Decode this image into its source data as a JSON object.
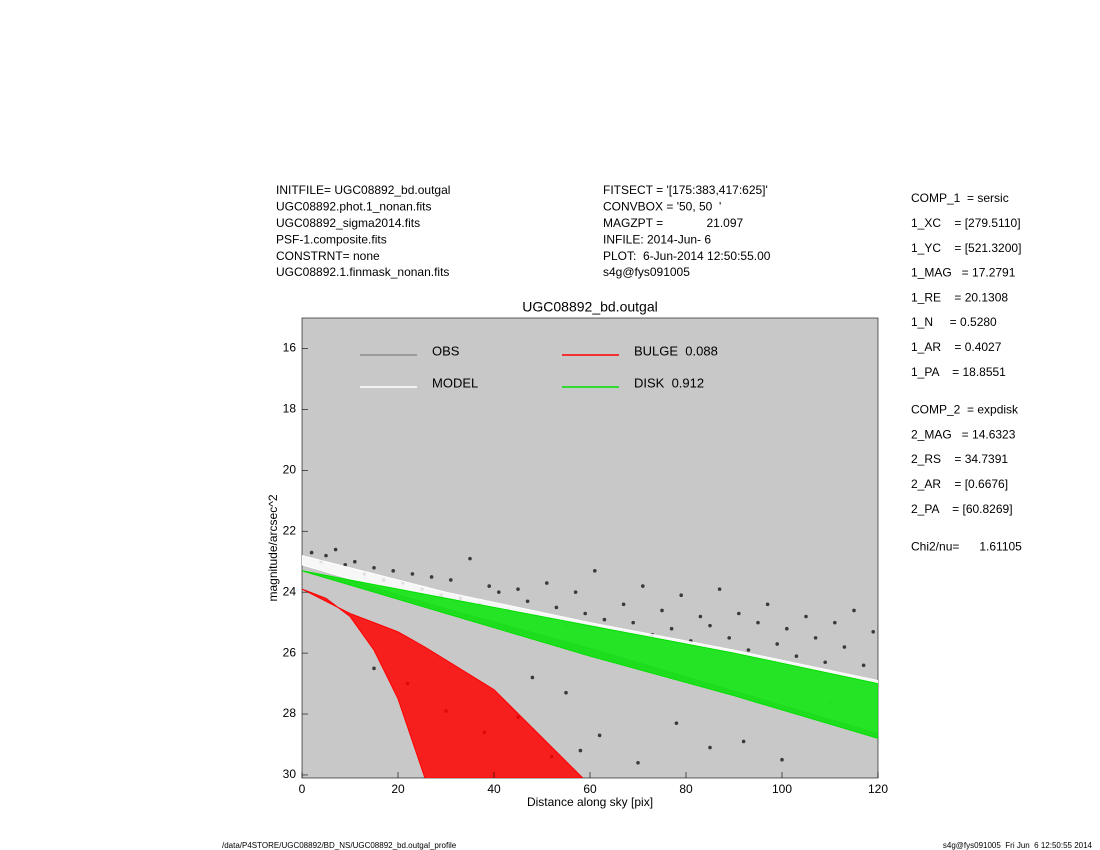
{
  "header": {
    "left": [
      "INITFILE= UGC08892_bd.outgal",
      "UGC08892.phot.1_nonan.fits",
      "UGC08892_sigma2014.fits",
      "PSF-1.composite.fits",
      "CONSTRNT= none",
      "UGC08892.1.finmask_nonan.fits"
    ],
    "middle": [
      "FITSECT = '[175:383,417:625]'",
      "CONVBOX = '50, 50  '",
      "MAGZPT =             21.097",
      "INFILE: 2014-Jun- 6",
      "PLOT:  6-Jun-2014 12:50:55.00",
      "s4g@fys091005"
    ]
  },
  "params": [
    [
      "COMP_1  = sersic",
      "1_XC    = [279.5110]",
      "1_YC    = [521.3200]",
      "1_MAG   = 17.2791",
      "1_RE    = 20.1308",
      "1_N     = 0.5280",
      "1_AR    = 0.4027",
      "1_PA    = 18.8551"
    ],
    [
      "COMP_2  = expdisk",
      "2_MAG   = 14.6323",
      "2_RS    = 34.7391",
      "2_AR    = [0.6676]",
      "2_PA    = [60.8269]"
    ],
    [
      "Chi2/nu=      1.61105"
    ]
  ],
  "footer": {
    "left": "/data/P4STORE/UGC08892/BD_NS/UGC08892_bd.outgal_profile",
    "right": "s4g@fys091005  Fri Jun  6 12:50:55 2014"
  },
  "chart_data": {
    "type": "scatter",
    "title": "UGC08892_bd.outgal",
    "x_label": "Distance along sky [pix]",
    "y_label": "magnitude/arcsec^2",
    "xlim": [
      0,
      120
    ],
    "ylim": [
      15,
      30.1
    ],
    "y_reversed": true,
    "xticks": [
      0,
      20,
      40,
      60,
      80,
      100,
      120
    ],
    "yticks": [
      16,
      18,
      20,
      22,
      24,
      26,
      28,
      30
    ],
    "background": "#c8c8c8",
    "series": [
      {
        "name": "OBS",
        "color": "#8c8c8c",
        "marker_color": "#3a3a3a",
        "x": [
          2,
          4,
          5,
          7,
          9,
          11,
          13,
          15,
          17,
          19,
          21,
          23,
          25,
          27,
          29,
          31,
          33,
          35,
          37,
          39,
          41,
          43,
          45,
          47,
          49,
          51,
          53,
          55,
          57,
          59,
          61,
          63,
          65,
          67,
          69,
          71,
          73,
          75,
          77,
          79,
          81,
          83,
          85,
          87,
          89,
          91,
          93,
          95,
          97,
          99,
          101,
          103,
          105,
          107,
          109,
          111,
          113,
          115,
          117,
          119,
          30,
          38,
          45,
          52,
          58,
          62,
          70,
          78,
          85,
          92,
          100,
          110,
          48,
          55,
          15,
          22
        ],
        "values": [
          22.7,
          23.0,
          22.8,
          22.6,
          23.1,
          23.0,
          23.4,
          23.2,
          23.6,
          23.3,
          23.7,
          23.4,
          23.9,
          23.5,
          24.1,
          23.6,
          24.2,
          22.9,
          24.4,
          23.8,
          24.0,
          24.6,
          23.9,
          24.3,
          24.8,
          23.7,
          24.5,
          25.1,
          24.0,
          24.7,
          23.3,
          24.9,
          25.3,
          24.4,
          25.0,
          23.8,
          25.4,
          24.6,
          25.2,
          24.1,
          25.6,
          24.8,
          25.1,
          23.9,
          25.5,
          24.7,
          25.9,
          25.0,
          24.4,
          25.7,
          25.2,
          26.1,
          24.8,
          25.5,
          26.3,
          25.0,
          25.8,
          24.6,
          26.4,
          25.3,
          27.9,
          28.6,
          28.1,
          29.4,
          29.2,
          28.7,
          29.6,
          28.3,
          29.1,
          28.9,
          29.5,
          27.6,
          26.8,
          27.3,
          26.5,
          27.0
        ]
      },
      {
        "name": "MODEL",
        "color": "#ffffff",
        "x": [
          0,
          30,
          60,
          90,
          120
        ],
        "values": [
          22.8,
          24.0,
          25.0,
          25.9,
          26.9
        ],
        "lower": [
          23.1,
          24.5,
          25.8,
          27.2,
          28.6
        ]
      },
      {
        "name": "BULGE  0.088",
        "color": "#ff0000",
        "x": [
          0,
          5,
          10,
          15,
          20,
          25.6,
          40,
          58.5
        ],
        "values": [
          23.9,
          24.2,
          24.8,
          25.9,
          27.5,
          30.1,
          30.1,
          30.1
        ],
        "lower": [
          23.9,
          24.3,
          24.7,
          25.0,
          25.3,
          25.8,
          27.2,
          30.1
        ]
      },
      {
        "name": "DISK  0.912",
        "color": "#00e000",
        "x": [
          0,
          30,
          60,
          90,
          120
        ],
        "values": [
          23.3,
          24.2,
          25.1,
          26.0,
          27.0
        ],
        "lower": [
          23.3,
          24.7,
          26.1,
          27.4,
          28.8
        ]
      }
    ]
  }
}
